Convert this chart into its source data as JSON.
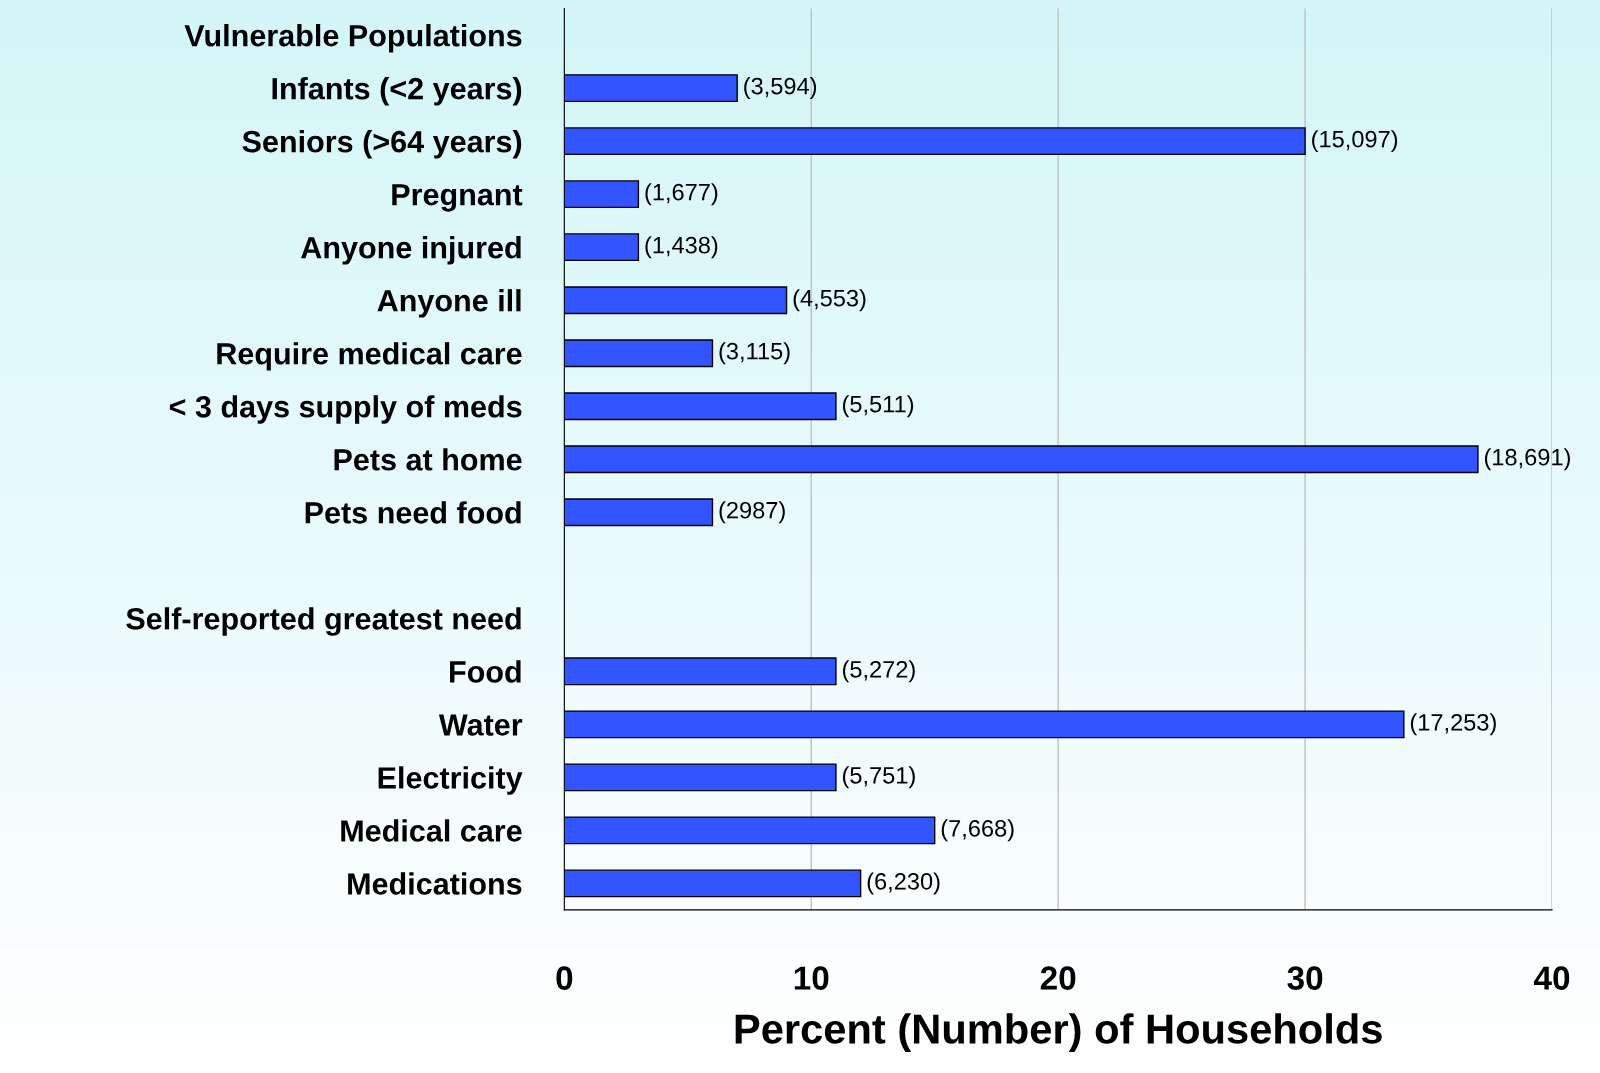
{
  "chart_data": {
    "type": "bar",
    "orientation": "horizontal",
    "xlabel": "Percent (Number) of Households",
    "categories": [
      "Vulnerable Populations",
      "Infants (<2 years)",
      "Seniors (>64 years)",
      "Pregnant",
      "Anyone injured",
      "Anyone ill",
      "Require medical care",
      "< 3 days supply of meds",
      "Pets at home",
      "Pets need food",
      null,
      "Self-reported greatest need",
      "Food",
      "Water",
      "Electricity",
      "Medical care",
      "Medications"
    ],
    "values": [
      null,
      7,
      30,
      3,
      3,
      9,
      6,
      11,
      37,
      6,
      null,
      null,
      11,
      34,
      11,
      15,
      12
    ],
    "annotations": [
      {
        "text": "(3,594)",
        "x": 7,
        "y": "Infants (<2 years)"
      },
      {
        "text": "(15,097)",
        "x": 30,
        "y": "Seniors (>64 years)"
      },
      {
        "text": "(1,677)",
        "x": 3,
        "y": "Pregnant"
      },
      {
        "text": "(1,438)",
        "x": 3,
        "y": "Anyone injured"
      },
      {
        "text": "(4,553)",
        "x": 9,
        "y": "Anyone ill"
      },
      {
        "text": "(3,115)",
        "x": 6,
        "y": "Require medical care"
      },
      {
        "text": "(5,511)",
        "x": 11,
        "y": "< 3 days supply of meds"
      },
      {
        "text": "(18,691)",
        "x": 37,
        "y": "Pets at home"
      },
      {
        "text": "(2987)",
        "x": 6,
        "y": "Pets need food"
      },
      {
        "text": "(5,272)",
        "x": 11,
        "y": "Food"
      },
      {
        "text": "(17,253)",
        "x": 34,
        "y": "Water"
      },
      {
        "text": "(5,751)",
        "x": 11,
        "y": "Electricity"
      },
      {
        "text": "(7,668)",
        "x": 15,
        "y": "Medical care"
      },
      {
        "text": "(6,230)",
        "x": 12,
        "y": "Medications"
      }
    ],
    "color": "#3355ff",
    "xlim": [
      0,
      40
    ],
    "xticks": [
      0,
      10,
      20,
      30,
      40
    ],
    "grid": "x",
    "legend": false
  }
}
